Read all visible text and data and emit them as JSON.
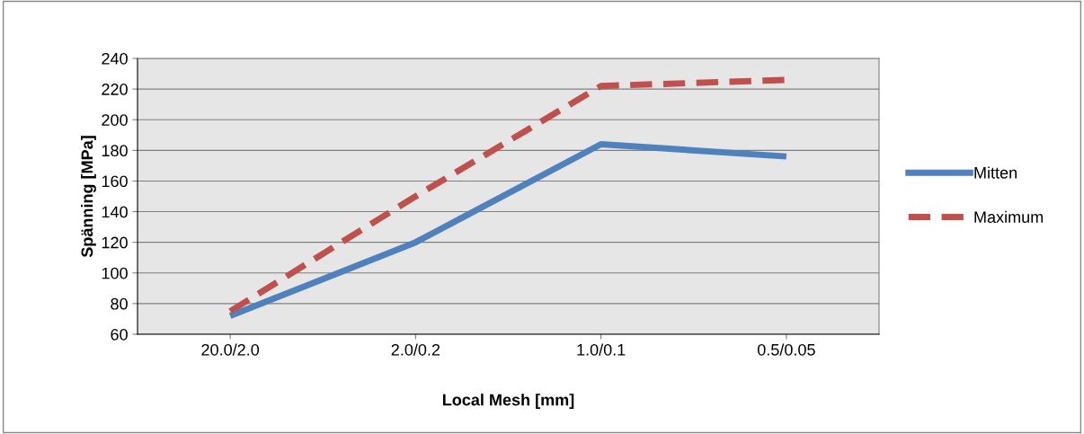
{
  "chart_data": {
    "type": "line",
    "xlabel": "Local Mesh [mm]",
    "ylabel": "Spänning [MPa]",
    "categories": [
      "20.0/2.0",
      "2.0/0.2",
      "1.0/0.1",
      "0.5/0.05"
    ],
    "series": [
      {
        "name": "Mitten",
        "color": "#4f81bd",
        "values": [
          72,
          120,
          184,
          176
        ],
        "line_style": "solid"
      },
      {
        "name": "Maximum",
        "color": "#c0504d",
        "values": [
          75,
          150,
          222,
          226
        ],
        "line_style": "dashed"
      }
    ],
    "ylim": [
      60,
      240
    ],
    "yticks": [
      60,
      80,
      100,
      120,
      140,
      160,
      180,
      200,
      220,
      240
    ],
    "grid": "y",
    "legend": "right",
    "marker": "none"
  }
}
